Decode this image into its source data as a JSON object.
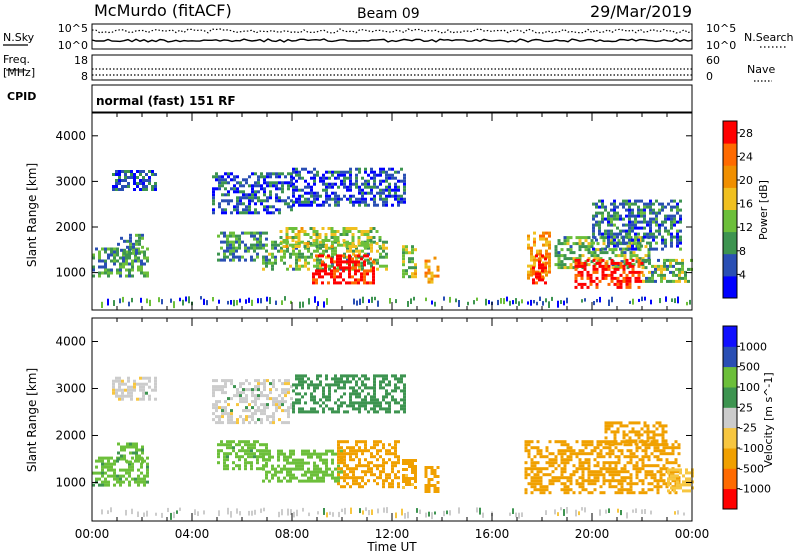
{
  "header": {
    "station": "McMurdo (fitACF)",
    "beam": "Beam 09",
    "date": "29/Mar/2019"
  },
  "noise_panel": {
    "left_label": "N.Sky",
    "right_label": "N.Search",
    "tick_top": "10^5",
    "tick_bottom": "10^0"
  },
  "freq_panel": {
    "left_label_1": "Freq.",
    "left_label_2": "[MHz]",
    "left_tick_top": "18",
    "left_tick_bottom": "8",
    "right_label": "Nave",
    "right_tick_top": "60",
    "right_tick_bottom": "0"
  },
  "cpid_panel": {
    "label": "CPID",
    "value": "normal (fast) 151 RF"
  },
  "colors": {
    "power": [
      "#0000ff",
      "#2a4fb4",
      "#3d9450",
      "#6cbf3a",
      "#f0c020",
      "#f08f00",
      "#ff6a00",
      "#ff0000"
    ],
    "velocity": [
      "#ff0000",
      "#ff6a00",
      "#f0a000",
      "#f7c640",
      "#cccccc",
      "#3d9450",
      "#6cbf3a",
      "#2a4fb4",
      "#1010ff"
    ]
  },
  "chart_data": [
    {
      "type": "heatmap",
      "name": "power",
      "title": "",
      "xlabel": "Time UT",
      "ylabel": "Slant Range [km]",
      "xlim": [
        0,
        24
      ],
      "ylim": [
        180,
        4500
      ],
      "x_ticks": [
        "00:00",
        "04:00",
        "08:00",
        "12:00",
        "16:00",
        "20:00",
        "00:00"
      ],
      "y_ticks": [
        1000,
        2000,
        3000,
        4000
      ],
      "colorbar": {
        "label": "Power [dB]",
        "ticks": [
          4,
          8,
          12,
          16,
          20,
          24,
          28
        ],
        "range": [
          0,
          30
        ]
      },
      "regions": [
        {
          "t": [
            0.0,
            2.2
          ],
          "r": [
            950,
            1550
          ],
          "value": 10
        },
        {
          "t": [
            1.0,
            2.0
          ],
          "r": [
            1450,
            1850
          ],
          "value": 8
        },
        {
          "t": [
            0.8,
            2.5
          ],
          "r": [
            2800,
            3250
          ],
          "value": 6
        },
        {
          "t": [
            4.8,
            8.0
          ],
          "r": [
            2300,
            3200
          ],
          "value": 6
        },
        {
          "t": [
            5.0,
            7.0
          ],
          "r": [
            1300,
            1900
          ],
          "value": 9
        },
        {
          "t": [
            6.8,
            11.8
          ],
          "r": [
            1100,
            1700
          ],
          "value": 12
        },
        {
          "t": [
            7.5,
            11.5
          ],
          "r": [
            1600,
            2000
          ],
          "value": 14
        },
        {
          "t": [
            8.8,
            11.3
          ],
          "r": [
            800,
            1400
          ],
          "value": 28
        },
        {
          "t": [
            8.0,
            12.5
          ],
          "r": [
            2500,
            3300
          ],
          "value": 5
        },
        {
          "t": [
            12.4,
            13.0
          ],
          "r": [
            900,
            1600
          ],
          "value": 14
        },
        {
          "t": [
            13.3,
            13.8
          ],
          "r": [
            800,
            1350
          ],
          "value": 20
        },
        {
          "t": [
            17.4,
            18.3
          ],
          "r": [
            900,
            1900
          ],
          "value": 20
        },
        {
          "t": [
            17.6,
            18.1
          ],
          "r": [
            800,
            1400
          ],
          "value": 28
        },
        {
          "t": [
            18.5,
            22.3
          ],
          "r": [
            1100,
            1800
          ],
          "value": 12
        },
        {
          "t": [
            19.3,
            22.0
          ],
          "r": [
            700,
            1300
          ],
          "value": 28
        },
        {
          "t": [
            20.0,
            23.5
          ],
          "r": [
            1500,
            2600
          ],
          "value": 7
        },
        {
          "t": [
            22.0,
            24.0
          ],
          "r": [
            800,
            1300
          ],
          "value": 12
        }
      ]
    },
    {
      "type": "heatmap",
      "name": "velocity",
      "title": "",
      "xlabel": "Time UT",
      "ylabel": "Slant Range [km]",
      "xlim": [
        0,
        24
      ],
      "ylim": [
        180,
        4500
      ],
      "x_ticks": [
        "00:00",
        "04:00",
        "08:00",
        "12:00",
        "16:00",
        "20:00",
        "00:00"
      ],
      "y_ticks": [
        1000,
        2000,
        3000,
        4000
      ],
      "colorbar": {
        "label": "Velocity [m s^-1]",
        "ticks": [
          -1000,
          -500,
          -100,
          -25,
          25,
          100,
          500,
          1000
        ]
      },
      "regions": [
        {
          "t": [
            0.0,
            2.2
          ],
          "r": [
            950,
            1550
          ],
          "value": 150
        },
        {
          "t": [
            1.0,
            2.0
          ],
          "r": [
            1450,
            1850
          ],
          "value": 120
        },
        {
          "t": [
            0.8,
            2.5
          ],
          "r": [
            2800,
            3250
          ],
          "value": 0
        },
        {
          "t": [
            4.8,
            8.0
          ],
          "r": [
            2300,
            3200
          ],
          "value": 0
        },
        {
          "t": [
            5.0,
            7.0
          ],
          "r": [
            1300,
            1900
          ],
          "value": 150
        },
        {
          "t": [
            6.8,
            10.0
          ],
          "r": [
            1000,
            1700
          ],
          "value": 200
        },
        {
          "t": [
            9.8,
            12.3
          ],
          "r": [
            900,
            1900
          ],
          "value": -200
        },
        {
          "t": [
            8.0,
            12.5
          ],
          "r": [
            2500,
            3300
          ],
          "value": 60
        },
        {
          "t": [
            12.4,
            13.0
          ],
          "r": [
            900,
            1500
          ],
          "value": -150
        },
        {
          "t": [
            13.3,
            13.8
          ],
          "r": [
            800,
            1350
          ],
          "value": -150
        },
        {
          "t": [
            17.3,
            18.5
          ],
          "r": [
            800,
            1900
          ],
          "value": -300
        },
        {
          "t": [
            18.5,
            23.5
          ],
          "r": [
            800,
            1900
          ],
          "value": -250
        },
        {
          "t": [
            20.5,
            23.0
          ],
          "r": [
            1800,
            2300
          ],
          "value": -200
        },
        {
          "t": [
            23.0,
            24.0
          ],
          "r": [
            800,
            1300
          ],
          "value": -60
        }
      ]
    }
  ]
}
